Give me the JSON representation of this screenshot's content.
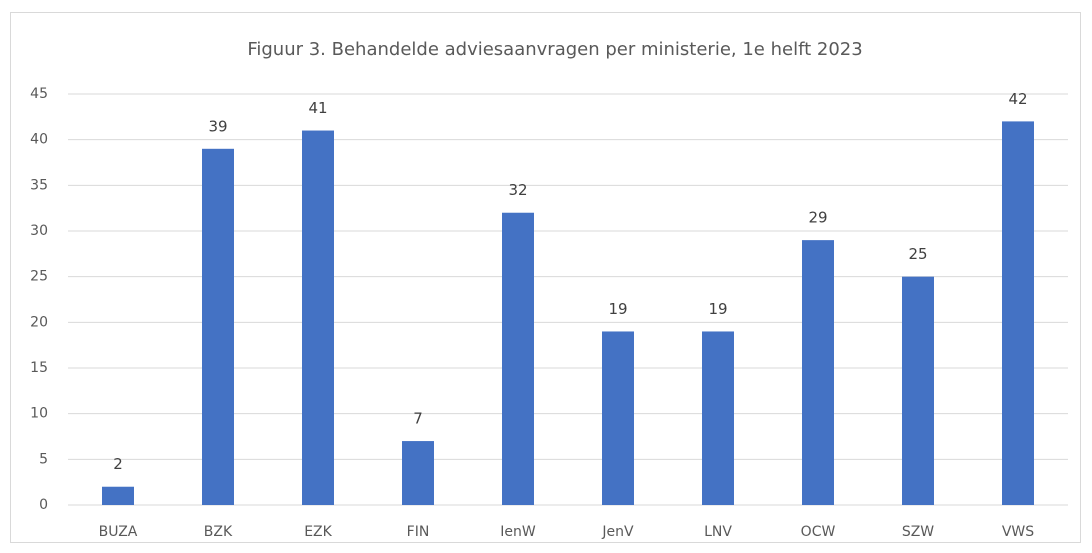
{
  "chart_data": {
    "type": "bar",
    "title": "Figuur 3. Behandelde adviesaanvragen per ministerie, 1e helft 2023",
    "categories": [
      "BUZA",
      "BZK",
      "EZK",
      "FIN",
      "IenW",
      "JenV",
      "LNV",
      "OCW",
      "SZW",
      "VWS"
    ],
    "values": [
      2,
      39,
      41,
      7,
      32,
      19,
      19,
      29,
      25,
      42
    ],
    "color": "#4472c4",
    "ylim": [
      0,
      45
    ],
    "yticks": [
      0,
      5,
      10,
      15,
      20,
      25,
      30,
      35,
      40,
      45
    ],
    "grid": true
  }
}
